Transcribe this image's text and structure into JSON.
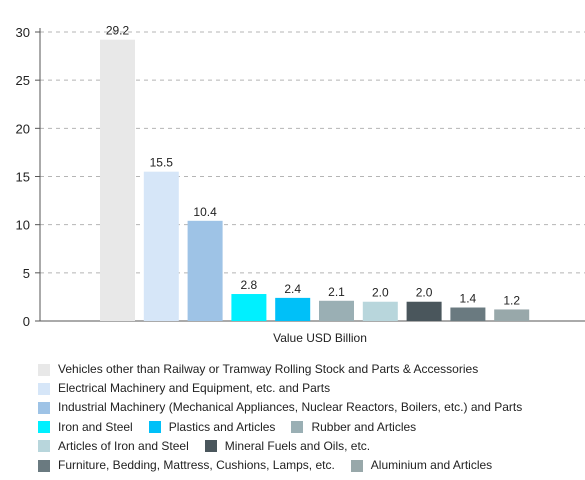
{
  "chart_data": {
    "type": "bar",
    "xlabel": "Value USD Billion",
    "ylim": [
      0,
      30
    ],
    "yticks": [
      0,
      5,
      10,
      15,
      20,
      25,
      30
    ],
    "grid": true,
    "legend_position": "bottom",
    "categories": [
      "Vehicles other than Railway or Tramway Rolling Stock and Parts & Accessories",
      "Electrical Machinery and Equipment, etc. and Parts",
      "Industrial Machinery (Mechanical Appliances, Nuclear Reactors, Boilers, etc.) and Parts",
      "Iron and Steel",
      "Plastics and Articles",
      "Rubber and Articles",
      "Articles of Iron and Steel",
      "Mineral Fuels and Oils, etc.",
      "Furniture, Bedding, Mattress, Cushions, Lamps, etc.",
      "Aluminium and Articles"
    ],
    "values": [
      29.2,
      15.5,
      10.4,
      2.8,
      2.4,
      2.1,
      2.0,
      2.0,
      1.4,
      1.2
    ],
    "value_labels": [
      "29.2",
      "15.5",
      "10.4",
      "2.8",
      "2.4",
      "2.1",
      "2.0",
      "2.0",
      "1.4",
      "1.2"
    ],
    "colors": [
      "#e8e8e8",
      "#d6e6f8",
      "#9ec3e6",
      "#00f0ff",
      "#00c0f8",
      "#9aafb4",
      "#b8d6dc",
      "#4a565c",
      "#6a7a80",
      "#98a8aa"
    ],
    "legend_rows": [
      [
        0
      ],
      [
        1
      ],
      [
        2
      ],
      [
        3,
        4,
        5
      ],
      [
        6,
        7
      ],
      [
        8,
        9
      ]
    ]
  }
}
